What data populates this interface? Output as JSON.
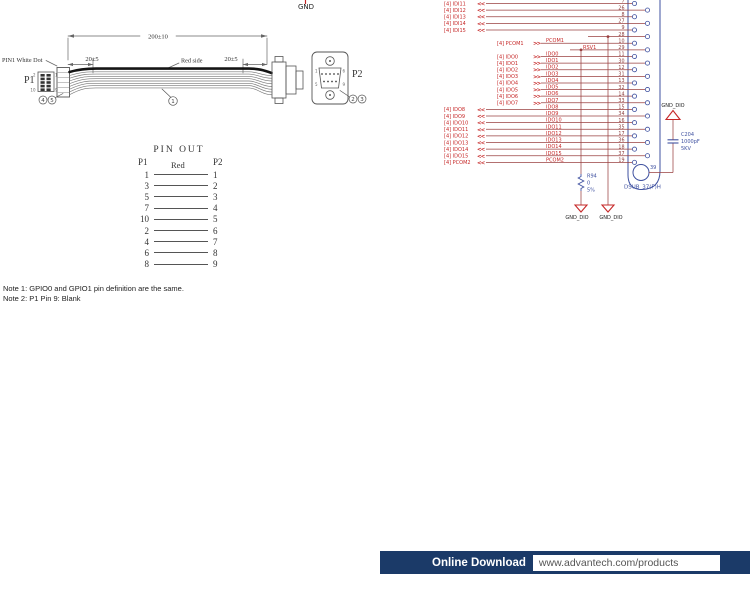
{
  "top_gnd": {
    "label": "GND"
  },
  "cable_drawing": {
    "dim_total": "200±10",
    "dim_left": "20±5",
    "dim_right": "20±5",
    "red_side_label": "Red side",
    "pin1_note": "PIN1 White Dot",
    "p1_label": "P1",
    "p2_label": "P2",
    "p1_pin_marks": [
      "2",
      "1",
      "10",
      "9"
    ],
    "p2_pin_marks": [
      "1",
      "6",
      "5",
      "9"
    ],
    "callouts": {
      "p1": [
        "4",
        "5"
      ],
      "cable": [
        "1"
      ],
      "p2": [
        "2",
        "3"
      ]
    }
  },
  "pinout_table": {
    "title": "PIN OUT",
    "col_p1": "P1",
    "col_p2": "P2",
    "wire_color_note": "Red",
    "rows": [
      {
        "p1": "1",
        "p2": "1"
      },
      {
        "p1": "3",
        "p2": "2"
      },
      {
        "p1": "5",
        "p2": "3"
      },
      {
        "p1": "7",
        "p2": "4"
      },
      {
        "p1": "10",
        "p2": "5"
      },
      {
        "p1": "2",
        "p2": "6"
      },
      {
        "p1": "4",
        "p2": "7"
      },
      {
        "p1": "6",
        "p2": "8"
      },
      {
        "p1": "8",
        "p2": "9"
      }
    ]
  },
  "notes": [
    "Note 1: GPIO0 and GPIO1 pin definition are the same.",
    "Note 2: P1 Pin 9: Blank"
  ],
  "schematic": {
    "connector_label": "DSUB_37(F)H",
    "pin39_label": "39",
    "gnd_label": "GND_DIO",
    "resistor": {
      "ref": "R94",
      "value": "0",
      "tolerance": "5%"
    },
    "capacitor": {
      "ref": "C204",
      "value": "1000pF",
      "rating": "5KV"
    },
    "net_rsv": "RSV1",
    "rows": [
      {
        "label": "[4] IDI11",
        "net": "",
        "pin": "7",
        "side": "L",
        "group": "far"
      },
      {
        "label": "[4] IDI12",
        "net": "",
        "pin": "26",
        "side": "R",
        "group": "far"
      },
      {
        "label": "[4] IDI13",
        "net": "",
        "pin": "8",
        "side": "L",
        "group": "far"
      },
      {
        "label": "[4] IDI14",
        "net": "",
        "pin": "27",
        "side": "R",
        "group": "far"
      },
      {
        "label": "[4] IDI15",
        "net": "",
        "pin": "9",
        "side": "L",
        "group": "far"
      },
      {
        "label": "",
        "net": "",
        "pin": "28",
        "side": "R",
        "group": "gnd28"
      },
      {
        "label": "[4] PCOM1",
        "net": "PCOM1",
        "pin": "10",
        "side": "L",
        "group": "ind"
      },
      {
        "label": "",
        "net": "RSV1",
        "pin": "29",
        "side": "R",
        "group": "rsv"
      },
      {
        "label": "[4] IDO0",
        "net": "IDO0",
        "pin": "11",
        "side": "L",
        "group": "ind"
      },
      {
        "label": "[4] IDO1",
        "net": "IDO1",
        "pin": "30",
        "side": "R",
        "group": "ind"
      },
      {
        "label": "[4] IDO2",
        "net": "IDO2",
        "pin": "12",
        "side": "L",
        "group": "ind"
      },
      {
        "label": "[4] IDO3",
        "net": "IDO3",
        "pin": "31",
        "side": "R",
        "group": "ind"
      },
      {
        "label": "[4] IDO4",
        "net": "IDO4",
        "pin": "13",
        "side": "L",
        "group": "ind"
      },
      {
        "label": "[4] IDO5",
        "net": "IDO5",
        "pin": "32",
        "side": "R",
        "group": "ind"
      },
      {
        "label": "[4] IDO6",
        "net": "IDO6",
        "pin": "14",
        "side": "L",
        "group": "ind"
      },
      {
        "label": "[4] IDO7",
        "net": "IDO7",
        "pin": "33",
        "side": "R",
        "group": "ind"
      },
      {
        "label": "[4] IDO8",
        "net": "IDO8",
        "pin": "15",
        "side": "L",
        "group": "far"
      },
      {
        "label": "[4] IDO9",
        "net": "IDO9",
        "pin": "34",
        "side": "R",
        "group": "far"
      },
      {
        "label": "[4] IDO10",
        "net": "IDO10",
        "pin": "16",
        "side": "L",
        "group": "far"
      },
      {
        "label": "[4] IDO11",
        "net": "IDO11",
        "pin": "35",
        "side": "R",
        "group": "far"
      },
      {
        "label": "[4] IDO12",
        "net": "IDO12",
        "pin": "17",
        "side": "L",
        "group": "far"
      },
      {
        "label": "[4] IDO13",
        "net": "IDO13",
        "pin": "36",
        "side": "R",
        "group": "far"
      },
      {
        "label": "[4] IDO14",
        "net": "IDO14",
        "pin": "18",
        "side": "L",
        "group": "far"
      },
      {
        "label": "[4] IDO15",
        "net": "IDO15",
        "pin": "37",
        "side": "R",
        "group": "far"
      },
      {
        "label": "[4] PCOM2",
        "net": "PCOM2",
        "pin": "19",
        "side": "L",
        "group": "far"
      }
    ],
    "colors": {
      "wire": "#9a4040",
      "label": "#c62828",
      "blue": "#3f51a0",
      "pin_num": "#8a3a3a"
    }
  },
  "footer": {
    "button": "Online Download",
    "url": "www.advantech.com/products",
    "bar_color": "#1b3a68"
  }
}
